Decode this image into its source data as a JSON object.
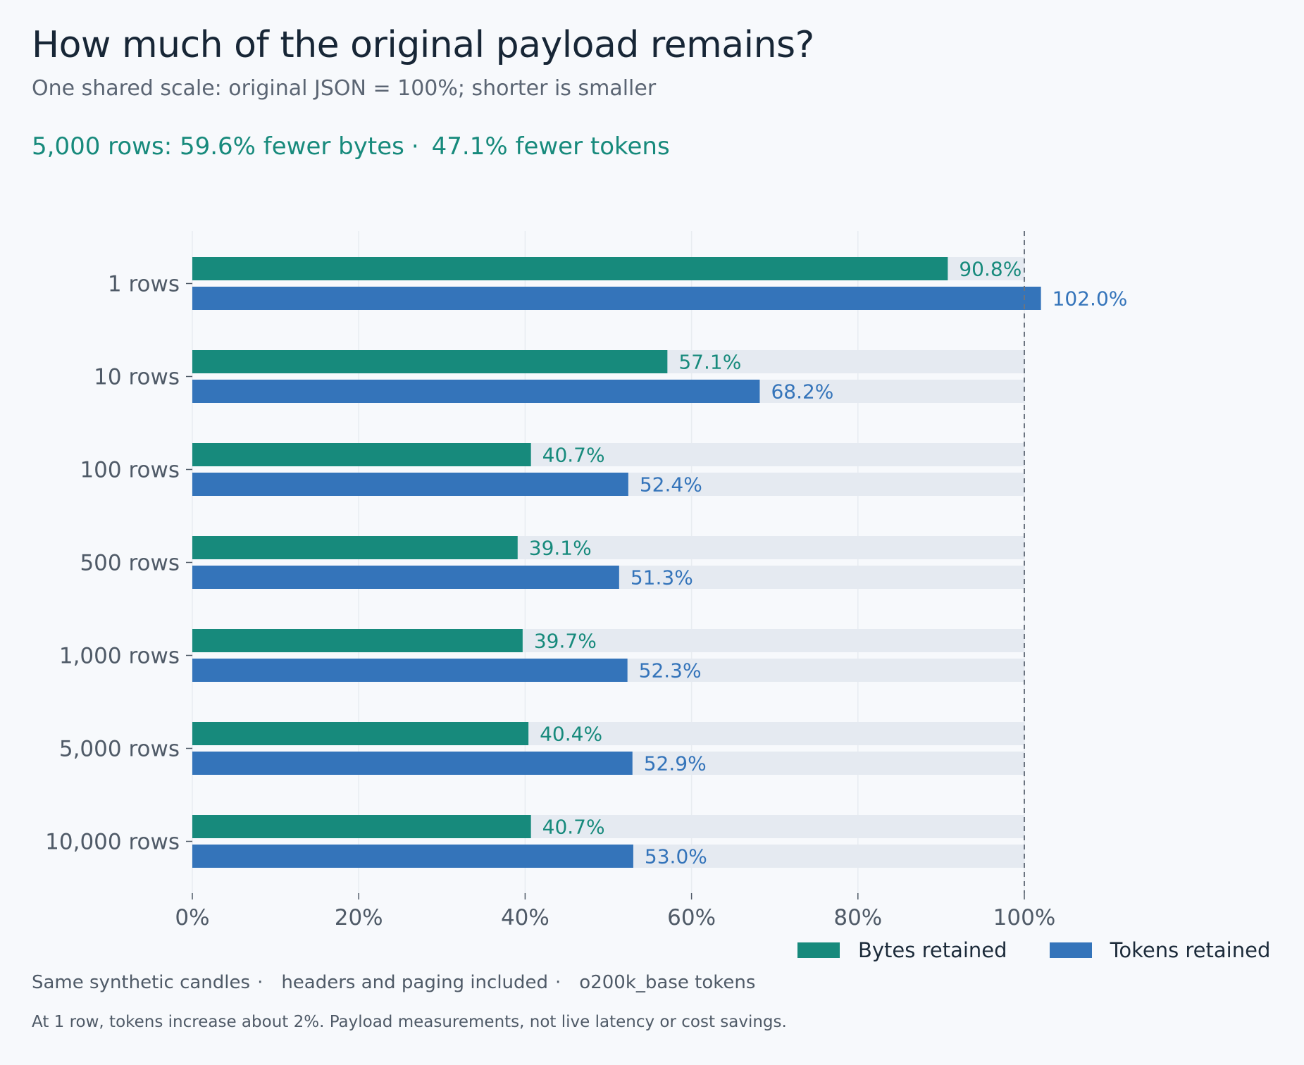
{
  "header": {
    "title": "How much of the original payload remains?",
    "subtitle": "One shared scale: original JSON = 100%; shorter is smaller",
    "headline_bytes": "5,000 rows: 59.6% fewer bytes",
    "headline_separator": "·",
    "headline_tokens": "47.1% fewer tokens"
  },
  "chart_data": {
    "type": "bar",
    "orientation": "horizontal",
    "categories": [
      "1 rows",
      "10 rows",
      "100 rows",
      "500 rows",
      "1,000 rows",
      "5,000 rows",
      "10,000 rows"
    ],
    "series": [
      {
        "name": "Bytes retained",
        "color": "#178a7c",
        "values": [
          90.8,
          57.1,
          40.7,
          39.1,
          39.7,
          40.4,
          40.7
        ],
        "labels": [
          "90.8%",
          "57.1%",
          "40.7%",
          "39.1%",
          "39.7%",
          "40.4%",
          "40.7%"
        ]
      },
      {
        "name": "Tokens retained",
        "color": "#3474ba",
        "values": [
          102.0,
          68.2,
          52.4,
          51.3,
          52.3,
          52.9,
          53.0
        ],
        "labels": [
          "102.0%",
          "68.2%",
          "52.4%",
          "51.3%",
          "52.3%",
          "52.9%",
          "53.0%"
        ]
      }
    ],
    "xlim": [
      0,
      100
    ],
    "xticks": [
      0,
      20,
      40,
      60,
      80,
      100
    ],
    "xtick_labels": [
      "0%",
      "20%",
      "40%",
      "60%",
      "80%",
      "100%"
    ],
    "reference_line": 100,
    "background_track_to": 100,
    "grid": "vertical",
    "legend_position": "bottom-right",
    "track_color": "#e5eaf1",
    "grid_color": "#e8ecf1",
    "reference_line_color": "#6b7480",
    "axis_text_color": "#4f5a67"
  },
  "footer": {
    "notes": [
      "Same synthetic candles",
      "headers and paging included",
      "o200k_base tokens"
    ],
    "separator": "·",
    "caveat": "At 1 row, tokens increase about 2%. Payload measurements, not live latency or cost savings."
  }
}
